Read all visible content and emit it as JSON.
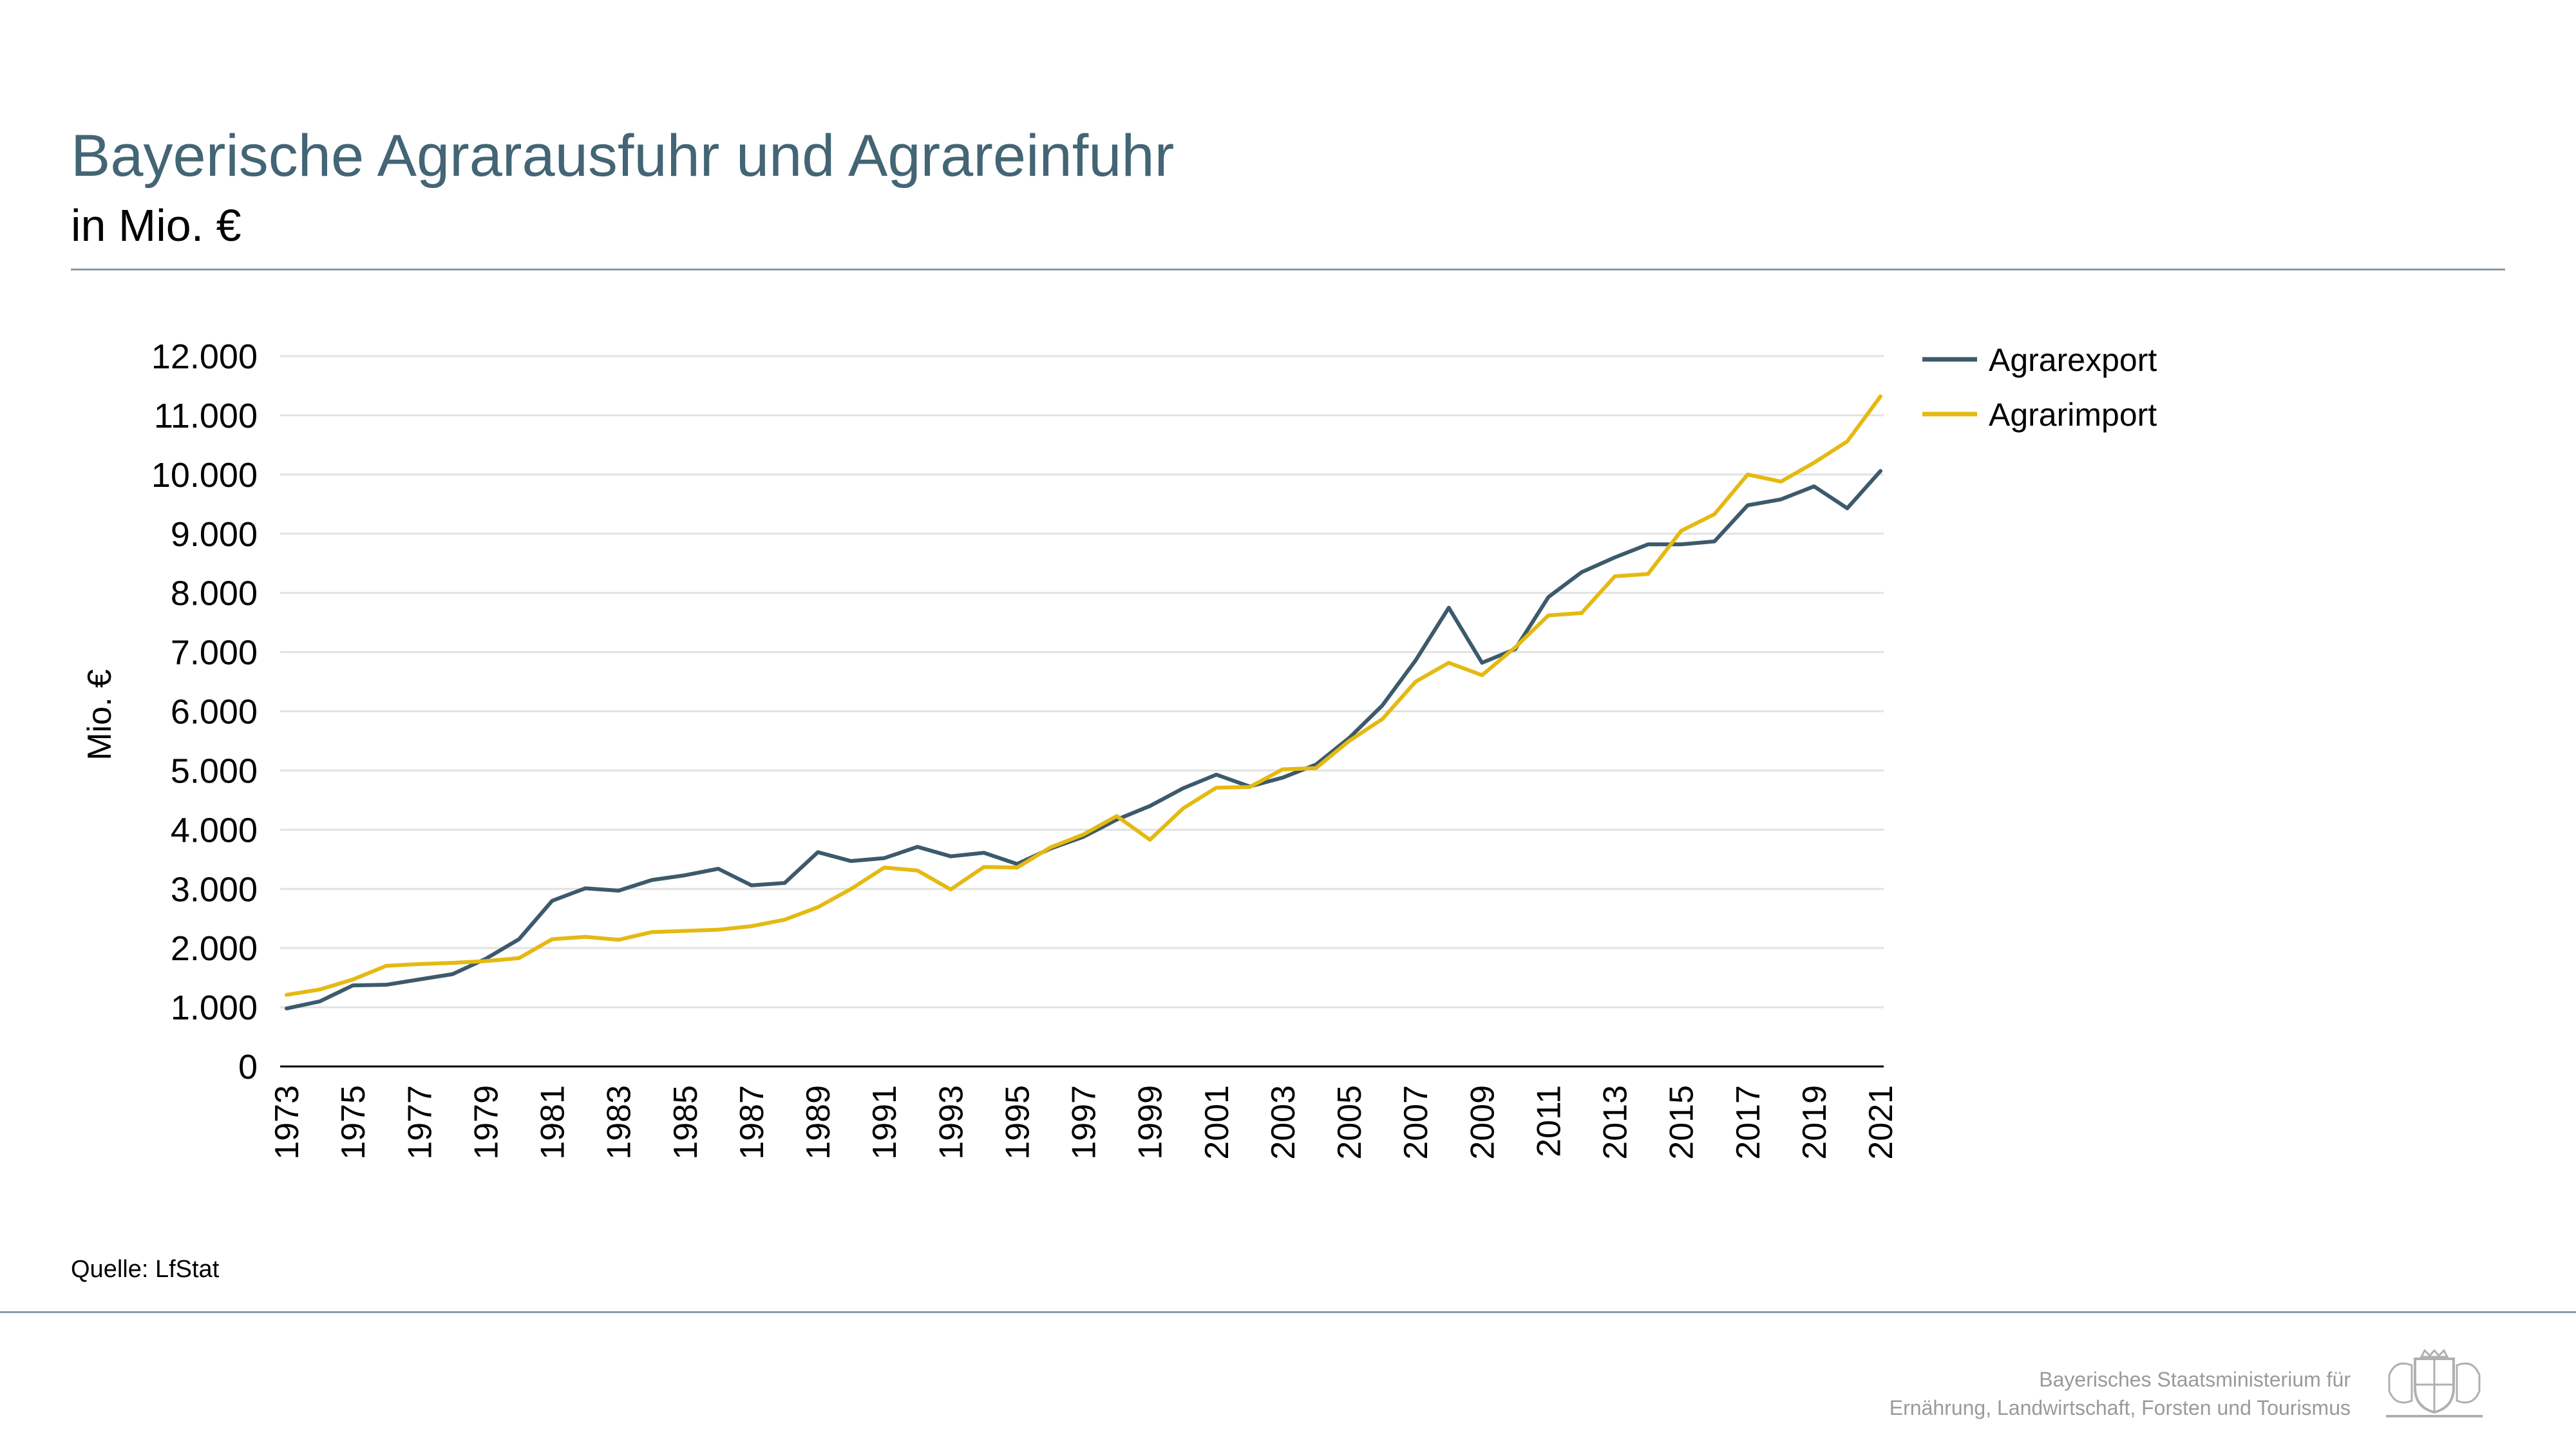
{
  "header": {
    "title": "Bayerische Agrarausfuhr und Agrareinfuhr",
    "subtitle": "in Mio. €"
  },
  "footer": {
    "source": "Quelle: LfStat",
    "ministry_line1": "Bayerisches Staatsministerium für",
    "ministry_line2": "Ernährung, Landwirtschaft, Forsten und Tourismus"
  },
  "chart_data": {
    "type": "line",
    "title": "Bayerische Agrarausfuhr und Agrareinfuhr",
    "subtitle": "in Mio. €",
    "xlabel": "",
    "ylabel": "Mio. €",
    "ylim": [
      0,
      12000
    ],
    "yticks": [
      "0",
      "1.000",
      "2.000",
      "3.000",
      "4.000",
      "5.000",
      "6.000",
      "7.000",
      "8.000",
      "9.000",
      "10.000",
      "11.000",
      "12.000"
    ],
    "xticks": [
      "1973",
      "1975",
      "1977",
      "1979",
      "1981",
      "1983",
      "1985",
      "1987",
      "1989",
      "1991",
      "1993",
      "1995",
      "1997",
      "1999",
      "2001",
      "2003",
      "2005",
      "2007",
      "2009",
      "2011",
      "2013",
      "2015",
      "2017",
      "2019",
      "2021"
    ],
    "grid": "horizontal",
    "legend": "top-right",
    "x": [
      1973,
      1974,
      1975,
      1976,
      1977,
      1978,
      1979,
      1980,
      1981,
      1982,
      1983,
      1984,
      1985,
      1986,
      1987,
      1988,
      1989,
      1990,
      1991,
      1992,
      1993,
      1994,
      1995,
      1996,
      1997,
      1998,
      1999,
      2000,
      2001,
      2002,
      2003,
      2004,
      2005,
      2006,
      2007,
      2008,
      2009,
      2010,
      2011,
      2012,
      2013,
      2014,
      2015,
      2016,
      2017,
      2018,
      2019,
      2020,
      2021
    ],
    "series": [
      {
        "name": "Agrarexport",
        "color": "#3d5a6c",
        "values": [
          980,
          1100,
          1370,
          1380,
          1470,
          1560,
          1820,
          2150,
          2800,
          3010,
          2970,
          3150,
          3230,
          3340,
          3060,
          3100,
          3620,
          3470,
          3520,
          3710,
          3550,
          3610,
          3420,
          3680,
          3880,
          4170,
          4400,
          4700,
          4930,
          4730,
          4880,
          5100,
          5550,
          6100,
          6860,
          7750,
          6820,
          7050,
          7930,
          8350,
          8600,
          8820,
          8820,
          8870,
          9480,
          9580,
          9800,
          9430,
          10060
        ]
      },
      {
        "name": "Agrarimport",
        "color": "#e5b912",
        "values": [
          1210,
          1300,
          1470,
          1700,
          1730,
          1750,
          1780,
          1830,
          2150,
          2190,
          2140,
          2270,
          2290,
          2310,
          2370,
          2480,
          2690,
          3000,
          3360,
          3310,
          2990,
          3370,
          3360,
          3700,
          3920,
          4230,
          3830,
          4360,
          4710,
          4720,
          5020,
          5040,
          5500,
          5870,
          6500,
          6820,
          6610,
          7080,
          7620,
          7660,
          8280,
          8320,
          9050,
          9330,
          10000,
          9880,
          10200,
          10560,
          11320
        ]
      }
    ]
  }
}
